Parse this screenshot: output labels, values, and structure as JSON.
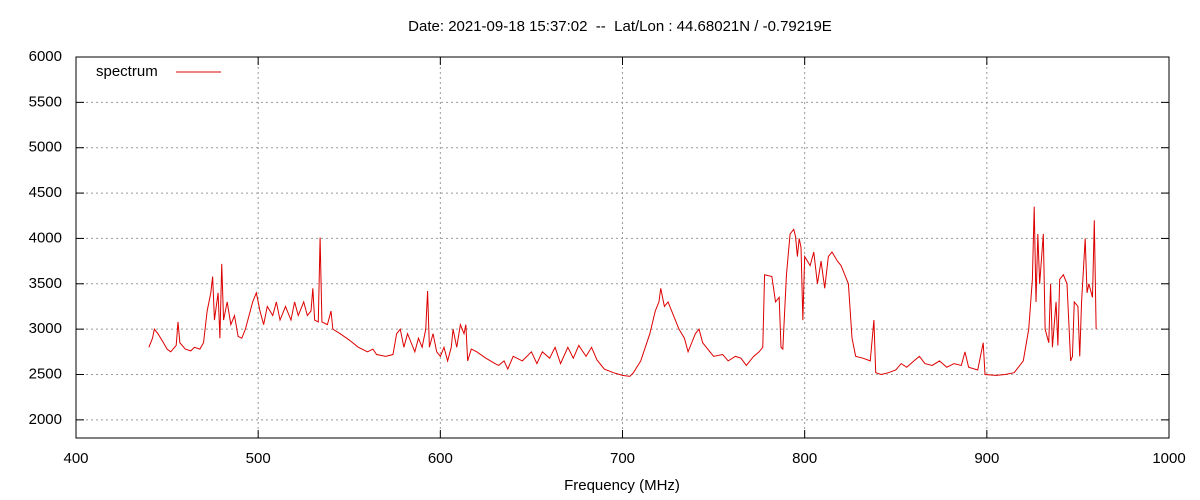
{
  "chart_data": {
    "type": "line",
    "title": "Date: 2021-09-18 15:37:02  --  Lat/Lon : 44.68021N / -0.79219E",
    "x_label": "Frequency (MHz)",
    "legend": "top-left",
    "grid": true,
    "xlim": [
      400,
      1000
    ],
    "xticks": [
      400,
      500,
      600,
      700,
      800,
      900,
      1000
    ],
    "ylim": [
      1800,
      6000
    ],
    "yticks": [
      2000,
      2500,
      3000,
      3500,
      4000,
      4500,
      5000,
      5500,
      6000
    ],
    "series": [
      {
        "name": "spectrum",
        "color": "#dd0000",
        "x": [
          440,
          442,
          443,
          445,
          448,
          450,
          452,
          455,
          456,
          457,
          460,
          463,
          465,
          468,
          470,
          472,
          474,
          475,
          476,
          478,
          479,
          480,
          481,
          483,
          485,
          487,
          489,
          491,
          493,
          495,
          497,
          499,
          501,
          503,
          505,
          508,
          510,
          512,
          515,
          518,
          520,
          522,
          525,
          527,
          529,
          530,
          531,
          533,
          534,
          535,
          538,
          540,
          541,
          545,
          550,
          555,
          560,
          563,
          565,
          570,
          574,
          576,
          578,
          580,
          582,
          584,
          586,
          588,
          590,
          592,
          593,
          594,
          596,
          598,
          600,
          602,
          604,
          606,
          607,
          609,
          611,
          613,
          614,
          615,
          617,
          620,
          625,
          630,
          632,
          635,
          637,
          640,
          645,
          650,
          653,
          656,
          660,
          663,
          666,
          670,
          673,
          676,
          680,
          683,
          686,
          690,
          695,
          700,
          704,
          706,
          710,
          715,
          718,
          720,
          721,
          723,
          725,
          728,
          731,
          734,
          736,
          738,
          740,
          742,
          744,
          746,
          750,
          755,
          758,
          762,
          765,
          768,
          772,
          775,
          777,
          778,
          782,
          784,
          786,
          787,
          788,
          790,
          792,
          794,
          795,
          796,
          797,
          798,
          799,
          800,
          803,
          805,
          807,
          809,
          811,
          813,
          815,
          818,
          820,
          822,
          824,
          826,
          828,
          832,
          836,
          838,
          839,
          842,
          846,
          850,
          853,
          856,
          860,
          863,
          866,
          870,
          874,
          878,
          882,
          886,
          888,
          890,
          895,
          898,
          899,
          905,
          910,
          915,
          920,
          923,
          925,
          926,
          927,
          928,
          929,
          931,
          932,
          934,
          935,
          936,
          938,
          939,
          940,
          942,
          944,
          946,
          947,
          948,
          950,
          951,
          952,
          954,
          955,
          956,
          958,
          959,
          960
        ],
        "values": [
          2800,
          2900,
          3000,
          2950,
          2850,
          2780,
          2750,
          2820,
          3080,
          2850,
          2780,
          2760,
          2800,
          2780,
          2850,
          3200,
          3400,
          3580,
          3100,
          3400,
          2900,
          3720,
          3100,
          3300,
          3050,
          3150,
          2920,
          2900,
          3000,
          3150,
          3300,
          3400,
          3200,
          3050,
          3250,
          3150,
          3300,
          3100,
          3250,
          3100,
          3300,
          3150,
          3300,
          3150,
          3200,
          3450,
          3100,
          3080,
          4010,
          3080,
          3050,
          3200,
          3000,
          2950,
          2880,
          2800,
          2750,
          2780,
          2720,
          2700,
          2720,
          2950,
          3000,
          2800,
          2950,
          2850,
          2750,
          2900,
          2800,
          3000,
          3420,
          2800,
          2950,
          2750,
          2700,
          2800,
          2650,
          2800,
          3000,
          2800,
          3050,
          2950,
          3050,
          2650,
          2780,
          2750,
          2680,
          2620,
          2600,
          2650,
          2560,
          2700,
          2650,
          2750,
          2620,
          2750,
          2680,
          2800,
          2620,
          2800,
          2680,
          2820,
          2700,
          2800,
          2660,
          2560,
          2520,
          2490,
          2480,
          2520,
          2650,
          2950,
          3200,
          3300,
          3450,
          3250,
          3300,
          3150,
          3000,
          2900,
          2750,
          2850,
          2950,
          3000,
          2850,
          2800,
          2700,
          2720,
          2650,
          2700,
          2680,
          2600,
          2700,
          2750,
          2800,
          3600,
          3580,
          3300,
          3350,
          2800,
          2780,
          3600,
          4050,
          4100,
          4020,
          3800,
          4000,
          3900,
          3100,
          3800,
          3700,
          3850,
          3500,
          3750,
          3450,
          3800,
          3850,
          3750,
          3700,
          3600,
          3500,
          2900,
          2700,
          2680,
          2650,
          3100,
          2520,
          2500,
          2520,
          2550,
          2620,
          2580,
          2650,
          2700,
          2620,
          2600,
          2650,
          2580,
          2620,
          2600,
          2750,
          2580,
          2550,
          2850,
          2500,
          2490,
          2500,
          2520,
          2650,
          3000,
          3550,
          4350,
          3300,
          4050,
          3500,
          4050,
          3000,
          2850,
          3500,
          2800,
          3300,
          2820,
          3550,
          3600,
          3500,
          2650,
          2700,
          3300,
          3250,
          2700,
          3300,
          4000,
          3400,
          3500,
          3350,
          4200,
          3000
        ]
      }
    ]
  }
}
